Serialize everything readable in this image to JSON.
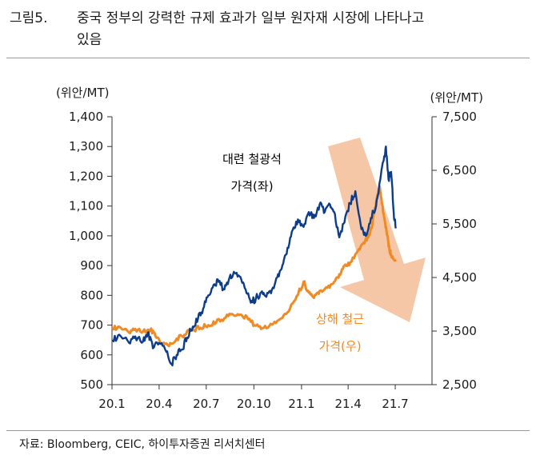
{
  "header": {
    "figure_number": "그림5.",
    "title_line1": "중국 정부의 강력한 규제 효과가 일부 원자재 시장에 나타나고",
    "title_line2": "있음"
  },
  "source": "자료: Bloomberg, CEIC, 하이투자증권 리서치센터",
  "colors": {
    "iron_ore": "#0d3d8a",
    "steel_rebar": "#f08a24",
    "arrow": "#f6c7a6",
    "axis": "#333333"
  },
  "chart_data": {
    "type": "line",
    "left_unit": "(위안/MT)",
    "right_unit": "(위안/MT)",
    "y_left_range": [
      500,
      1400
    ],
    "y_left_ticks": [
      "1,400",
      "1,300",
      "1,200",
      "1,100",
      "1,000",
      "900",
      "800",
      "700",
      "600",
      "500"
    ],
    "y_right_range": [
      2500,
      7500
    ],
    "y_right_ticks": [
      "7,500",
      "6,500",
      "5,500",
      "4,500",
      "3,500",
      "2,500"
    ],
    "x_range": [
      "2020-01-01",
      "2021-09-10"
    ],
    "x_ticks": [
      "20.1",
      "20.4",
      "20.7",
      "20.10",
      "21.1",
      "21.4",
      "21.7"
    ],
    "annotations": {
      "iron_ore_line1": "대련 철광석",
      "iron_ore_line2": "가격(좌)",
      "steel_line1": "상해 철근",
      "steel_line2": "가격(우)"
    },
    "series": [
      {
        "name": "대련 철광석 가격(좌)",
        "axis": "left",
        "points": [
          [
            "2020-01-02",
            650
          ],
          [
            "2020-01-15",
            668
          ],
          [
            "2020-02-03",
            640
          ],
          [
            "2020-02-15",
            662
          ],
          [
            "2020-03-01",
            645
          ],
          [
            "2020-03-10",
            675
          ],
          [
            "2020-03-20",
            622
          ],
          [
            "2020-04-01",
            640
          ],
          [
            "2020-04-15",
            610
          ],
          [
            "2020-04-25",
            570
          ],
          [
            "2020-05-05",
            600
          ],
          [
            "2020-05-15",
            618
          ],
          [
            "2020-05-25",
            658
          ],
          [
            "2020-06-05",
            695
          ],
          [
            "2020-06-15",
            720
          ],
          [
            "2020-06-25",
            755
          ],
          [
            "2020-07-05",
            800
          ],
          [
            "2020-07-15",
            835
          ],
          [
            "2020-07-25",
            845
          ],
          [
            "2020-08-05",
            820
          ],
          [
            "2020-08-15",
            860
          ],
          [
            "2020-08-25",
            875
          ],
          [
            "2020-09-05",
            862
          ],
          [
            "2020-09-15",
            820
          ],
          [
            "2020-09-25",
            775
          ],
          [
            "2020-10-05",
            790
          ],
          [
            "2020-10-15",
            810
          ],
          [
            "2020-10-25",
            795
          ],
          [
            "2020-11-05",
            820
          ],
          [
            "2020-11-15",
            860
          ],
          [
            "2020-11-25",
            900
          ],
          [
            "2020-12-05",
            960
          ],
          [
            "2020-12-15",
            1020
          ],
          [
            "2020-12-25",
            1055
          ],
          [
            "2021-01-05",
            1030
          ],
          [
            "2021-01-15",
            1080
          ],
          [
            "2021-01-25",
            1060
          ],
          [
            "2021-02-05",
            1105
          ],
          [
            "2021-02-15",
            1080
          ],
          [
            "2021-02-25",
            1105
          ],
          [
            "2021-03-05",
            1080
          ],
          [
            "2021-03-15",
            995
          ],
          [
            "2021-03-25",
            1045
          ],
          [
            "2021-04-05",
            1110
          ],
          [
            "2021-04-15",
            1150
          ],
          [
            "2021-04-25",
            1040
          ],
          [
            "2021-05-05",
            1000
          ],
          [
            "2021-05-15",
            1060
          ],
          [
            "2021-05-25",
            1100
          ],
          [
            "2021-06-01",
            1180
          ],
          [
            "2021-06-08",
            1250
          ],
          [
            "2021-06-13",
            1300
          ],
          [
            "2021-06-18",
            1190
          ],
          [
            "2021-06-23",
            1215
          ],
          [
            "2021-06-28",
            1080
          ],
          [
            "2021-07-02",
            1025
          ]
        ]
      },
      {
        "name": "상해 철근 가격(우)",
        "axis": "right",
        "points": [
          [
            "2020-01-02",
            3560
          ],
          [
            "2020-01-15",
            3580
          ],
          [
            "2020-02-03",
            3470
          ],
          [
            "2020-02-15",
            3540
          ],
          [
            "2020-03-01",
            3490
          ],
          [
            "2020-03-15",
            3530
          ],
          [
            "2020-03-25",
            3400
          ],
          [
            "2020-04-05",
            3260
          ],
          [
            "2020-04-20",
            3220
          ],
          [
            "2020-05-05",
            3360
          ],
          [
            "2020-05-20",
            3430
          ],
          [
            "2020-06-05",
            3530
          ],
          [
            "2020-06-20",
            3560
          ],
          [
            "2020-07-05",
            3610
          ],
          [
            "2020-07-20",
            3660
          ],
          [
            "2020-08-05",
            3740
          ],
          [
            "2020-08-20",
            3820
          ],
          [
            "2020-09-05",
            3810
          ],
          [
            "2020-09-20",
            3720
          ],
          [
            "2020-10-05",
            3600
          ],
          [
            "2020-10-20",
            3560
          ],
          [
            "2020-11-05",
            3620
          ],
          [
            "2020-11-20",
            3720
          ],
          [
            "2020-12-05",
            3850
          ],
          [
            "2020-12-20",
            4080
          ],
          [
            "2021-01-05",
            4420
          ],
          [
            "2021-01-15",
            4220
          ],
          [
            "2021-01-25",
            4120
          ],
          [
            "2021-02-05",
            4250
          ],
          [
            "2021-02-20",
            4310
          ],
          [
            "2021-03-05",
            4420
          ],
          [
            "2021-03-15",
            4560
          ],
          [
            "2021-03-25",
            4720
          ],
          [
            "2021-04-05",
            4780
          ],
          [
            "2021-04-20",
            5000
          ],
          [
            "2021-05-01",
            5150
          ],
          [
            "2021-05-10",
            5250
          ],
          [
            "2021-05-18",
            5500
          ],
          [
            "2021-05-25",
            5900
          ],
          [
            "2021-06-01",
            6200
          ],
          [
            "2021-06-06",
            5850
          ],
          [
            "2021-06-10",
            5600
          ],
          [
            "2021-06-15",
            5300
          ],
          [
            "2021-06-20",
            5000
          ],
          [
            "2021-06-25",
            4900
          ],
          [
            "2021-07-02",
            4800
          ]
        ]
      }
    ]
  }
}
